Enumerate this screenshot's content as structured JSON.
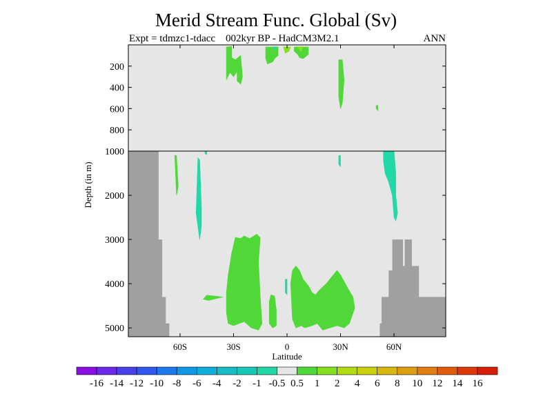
{
  "chart_data": {
    "type": "heatmap",
    "title": "Merid Stream Func. Global (Sv)",
    "subtitle_left": "Expt = tdmzc1-tdacc",
    "subtitle_center": "002kyr BP - HadCM3M2.1",
    "subtitle_right": "ANN",
    "xlabel": "Latitude",
    "ylabel": "Depth (in m)",
    "x_ticks": [
      {
        "value": -60,
        "label": "60S"
      },
      {
        "value": -30,
        "label": "30S"
      },
      {
        "value": 0,
        "label": "0"
      },
      {
        "value": 30,
        "label": "30N"
      },
      {
        "value": 60,
        "label": "60N"
      }
    ],
    "y_ticks_upper": [
      200,
      400,
      600,
      800,
      1000
    ],
    "y_ticks_lower": [
      2000,
      3000,
      4000,
      5000
    ],
    "xlim": [
      -89,
      89
    ],
    "ylim_upper": [
      0,
      1000
    ],
    "ylim_lower": [
      1000,
      5200
    ],
    "colorbar_labels": [
      "-16",
      "-14",
      "-12",
      "-10",
      "-8",
      "-6",
      "-4",
      "-2",
      "-1",
      "-0.5",
      "0.5",
      "1",
      "2",
      "4",
      "6",
      "8",
      "10",
      "12",
      "14",
      "16"
    ],
    "colorbar_colors": [
      "#8a10e0",
      "#6a2ae8",
      "#4840e8",
      "#3058f0",
      "#1e78ee",
      "#1098e6",
      "#10aedc",
      "#18bcc8",
      "#18c8b6",
      "#22d8a6",
      "#e6e6e6",
      "#50d838",
      "#86e020",
      "#b2dc10",
      "#cad00c",
      "#d8b810",
      "#de9e12",
      "#e07c10",
      "#e05c0c",
      "#de380a",
      "#d81e08"
    ],
    "background_color": "#e6e6e6",
    "land_color": "#a0a0a0",
    "land_mask": {
      "south": [
        [
          -89,
          1000
        ],
        [
          -72,
          1000
        ],
        [
          -72,
          3000
        ],
        [
          -70,
          3000
        ],
        [
          -70,
          4300
        ],
        [
          -68,
          4300
        ],
        [
          -68,
          4900
        ],
        [
          -66,
          4900
        ],
        [
          -66,
          5200
        ],
        [
          -89,
          5200
        ]
      ],
      "north": [
        [
          52,
          5200
        ],
        [
          52,
          4900
        ],
        [
          53,
          4900
        ],
        [
          53,
          4300
        ],
        [
          57,
          4300
        ],
        [
          57,
          3700
        ],
        [
          59,
          3700
        ],
        [
          59,
          3000
        ],
        [
          65,
          3000
        ],
        [
          65,
          3600
        ],
        [
          66,
          3600
        ],
        [
          66,
          3000
        ],
        [
          70,
          3000
        ],
        [
          70,
          3600
        ],
        [
          74,
          3600
        ],
        [
          74,
          4300
        ],
        [
          89,
          4300
        ],
        [
          89,
          5200
        ]
      ]
    },
    "regions": [
      {
        "level": 1,
        "points": [
          [
            -34,
            4200
          ],
          [
            -33,
            3800
          ],
          [
            -31,
            3300
          ],
          [
            -29,
            2950
          ],
          [
            -26,
            2980
          ],
          [
            -24,
            2920
          ],
          [
            -21,
            2980
          ],
          [
            -17,
            2880
          ],
          [
            -15,
            2960
          ],
          [
            -16,
            3500
          ],
          [
            -15,
            4300
          ],
          [
            -14,
            4900
          ],
          [
            -16,
            5050
          ],
          [
            -20,
            5000
          ],
          [
            -24,
            4860
          ],
          [
            -27,
            4900
          ],
          [
            -30,
            4950
          ],
          [
            -33,
            4900
          ],
          [
            -34,
            4650
          ]
        ]
      },
      {
        "level": 1,
        "points": [
          [
            -10,
            4400
          ],
          [
            -9,
            4250
          ],
          [
            -7,
            4280
          ],
          [
            -6,
            4600
          ],
          [
            -6,
            4950
          ],
          [
            -8,
            5000
          ],
          [
            -10,
            4900
          ]
        ]
      },
      {
        "level": 1,
        "points": [
          [
            2,
            4000
          ],
          [
            3,
            3700
          ],
          [
            5,
            3600
          ],
          [
            7,
            3700
          ],
          [
            9,
            3900
          ],
          [
            12,
            4050
          ],
          [
            14,
            4200
          ],
          [
            16,
            4250
          ],
          [
            18,
            4150
          ],
          [
            22,
            4000
          ],
          [
            25,
            3850
          ],
          [
            28,
            3700
          ],
          [
            30,
            3800
          ],
          [
            34,
            4100
          ],
          [
            37,
            4300
          ],
          [
            38,
            4550
          ],
          [
            35,
            4900
          ],
          [
            32,
            5000
          ],
          [
            28,
            4950
          ],
          [
            24,
            5000
          ],
          [
            20,
            5050
          ],
          [
            17,
            4900
          ],
          [
            14,
            4950
          ],
          [
            10,
            5000
          ],
          [
            8,
            4950
          ],
          [
            5,
            5000
          ],
          [
            3,
            4800
          ]
        ]
      },
      {
        "level": 1,
        "points": [
          [
            -36,
            4300
          ],
          [
            -45,
            4260
          ],
          [
            -47,
            4350
          ],
          [
            -44,
            4380
          ]
        ]
      },
      {
        "level": 1,
        "points": [
          [
            -34,
            20
          ],
          [
            -31,
            15
          ],
          [
            -31,
            120
          ],
          [
            -29,
            140
          ],
          [
            -26,
            100
          ],
          [
            -25,
            300
          ],
          [
            -26,
            370
          ],
          [
            -28,
            340
          ],
          [
            -28,
            250
          ],
          [
            -30,
            300
          ],
          [
            -32,
            260
          ],
          [
            -34,
            330
          ]
        ]
      },
      {
        "level": 1,
        "points": [
          [
            -12,
            20
          ],
          [
            -5,
            20
          ],
          [
            -5,
            100
          ],
          [
            -7,
            130
          ],
          [
            -8,
            160
          ],
          [
            -11,
            180
          ],
          [
            -12,
            130
          ]
        ]
      },
      {
        "level": 1,
        "points": [
          [
            4,
            20
          ],
          [
            12,
            20
          ],
          [
            12,
            90
          ],
          [
            9,
            130
          ],
          [
            7,
            120
          ],
          [
            6,
            90
          ],
          [
            4,
            60
          ]
        ]
      },
      {
        "level": 1,
        "points": [
          [
            29,
            140
          ],
          [
            31,
            140
          ],
          [
            32,
            330
          ],
          [
            31,
            550
          ],
          [
            30,
            600
          ],
          [
            29,
            490
          ],
          [
            29,
            300
          ]
        ]
      },
      {
        "level": 1,
        "points": [
          [
            -63,
            1100
          ],
          [
            -62,
            1100
          ],
          [
            -61,
            1800
          ],
          [
            -62,
            2000
          ]
        ]
      },
      {
        "level": 1,
        "points": [
          [
            50,
            570
          ],
          [
            51,
            570
          ],
          [
            51,
            620
          ],
          [
            50,
            600
          ]
        ]
      },
      {
        "level": 2,
        "points": [
          [
            -2,
            20
          ],
          [
            2,
            20
          ],
          [
            1,
            60
          ],
          [
            -1,
            80
          ]
        ]
      },
      {
        "level": 2,
        "points": [
          [
            6,
            20
          ],
          [
            9,
            20
          ],
          [
            8,
            60
          ],
          [
            7,
            50
          ]
        ]
      },
      {
        "level": -1,
        "points": [
          [
            -50,
            1150
          ],
          [
            -49,
            1200
          ],
          [
            -48,
            2300
          ],
          [
            -48,
            2700
          ],
          [
            -49,
            3000
          ],
          [
            -50,
            2700
          ],
          [
            -51,
            2400
          ]
        ]
      },
      {
        "level": -1,
        "points": [
          [
            -46,
            1000
          ],
          [
            -45,
            1000
          ],
          [
            -45,
            1080
          ],
          [
            -46,
            1060
          ]
        ]
      },
      {
        "level": -1,
        "points": [
          [
            54,
            1000
          ],
          [
            60,
            1000
          ],
          [
            61,
            1500
          ],
          [
            61,
            2000
          ],
          [
            62,
            2400
          ],
          [
            61,
            2580
          ],
          [
            60,
            2500
          ],
          [
            59,
            2000
          ],
          [
            57,
            1700
          ],
          [
            55,
            1500
          ],
          [
            54,
            1200
          ]
        ]
      },
      {
        "level": -1,
        "points": [
          [
            29,
            1100
          ],
          [
            30,
            1100
          ],
          [
            30,
            1350
          ],
          [
            29,
            1300
          ]
        ]
      },
      {
        "level": -1,
        "points": [
          [
            -1,
            3900
          ],
          [
            0,
            3900
          ],
          [
            0,
            4250
          ],
          [
            -1,
            4200
          ]
        ]
      },
      {
        "level": -1,
        "points": [
          [
            -8,
            20
          ],
          [
            -6,
            20
          ],
          [
            -7,
            50
          ]
        ]
      }
    ]
  }
}
